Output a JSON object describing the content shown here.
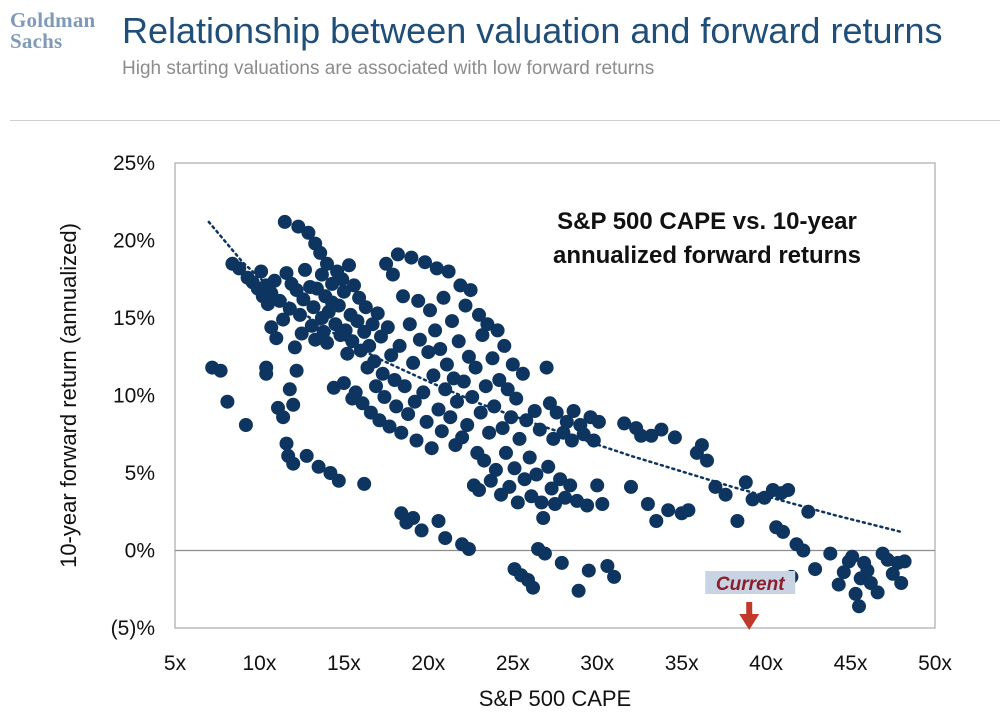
{
  "header": {
    "logo_line1": "Goldman",
    "logo_line2": "Sachs",
    "title": "Relationship between valuation and forward returns",
    "subtitle": "High starting valuations are associated with low forward returns"
  },
  "colors": {
    "points": "#0d3560",
    "trendline": "#0d3560",
    "title": "#1f4e79",
    "current_arrow": "#c0392b",
    "current_label": "#8b1e2b",
    "current_label_bg": "#c8d4e4"
  },
  "chart_data": {
    "type": "scatter",
    "title": "S&P 500 CAPE vs. 10-year annualized forward returns",
    "xlabel": "S&P 500 CAPE",
    "ylabel": "10-year forward return (annualized)",
    "xlim": [
      5,
      50
    ],
    "ylim": [
      -5,
      25
    ],
    "x_ticks": [
      5,
      10,
      15,
      20,
      25,
      30,
      35,
      40,
      45,
      50
    ],
    "x_tick_labels": [
      "5x",
      "10x",
      "15x",
      "20x",
      "25x",
      "30x",
      "35x",
      "40x",
      "45x",
      "50x"
    ],
    "y_ticks": [
      -5,
      0,
      5,
      10,
      15,
      20,
      25
    ],
    "y_tick_labels": [
      "(5)%",
      "0%",
      "5%",
      "10%",
      "15%",
      "20%",
      "25%"
    ],
    "grid": false,
    "zero_line": true,
    "trendline": {
      "style": "dotted",
      "x": [
        7,
        9,
        11,
        13,
        15,
        17,
        20,
        23,
        26,
        29,
        32,
        35,
        38,
        41,
        44,
        48
      ],
      "y": [
        21.2,
        18.6,
        16.6,
        15.0,
        13.6,
        12.4,
        10.9,
        9.5,
        8.3,
        7.2,
        6.1,
        5.1,
        4.1,
        3.2,
        2.3,
        1.2
      ]
    },
    "annotation": {
      "label": "Current",
      "x": 39
    },
    "series": [
      {
        "points": [
          [
            7.2,
            11.8
          ],
          [
            7.7,
            11.6
          ],
          [
            8.1,
            9.6
          ],
          [
            8.4,
            18.5
          ],
          [
            8.8,
            18.2
          ],
          [
            9.2,
            8.1
          ],
          [
            9.3,
            17.6
          ],
          [
            9.6,
            17.3
          ],
          [
            9.9,
            16.9
          ],
          [
            10.1,
            18.0
          ],
          [
            10.2,
            16.4
          ],
          [
            10.4,
            17.1
          ],
          [
            10.4,
            11.8
          ],
          [
            10.5,
            15.9
          ],
          [
            10.7,
            16.6
          ],
          [
            10.7,
            14.4
          ],
          [
            10.4,
            11.4
          ],
          [
            10.9,
            17.4
          ],
          [
            11.0,
            13.7
          ],
          [
            11.1,
            9.2
          ],
          [
            11.2,
            16.1
          ],
          [
            11.4,
            14.9
          ],
          [
            11.4,
            8.6
          ],
          [
            11.5,
            21.2
          ],
          [
            11.6,
            6.9
          ],
          [
            11.6,
            17.9
          ],
          [
            11.7,
            6.1
          ],
          [
            11.8,
            10.4
          ],
          [
            11.8,
            15.6
          ],
          [
            11.9,
            17.2
          ],
          [
            12.0,
            5.6
          ],
          [
            12.0,
            9.4
          ],
          [
            12.1,
            13.1
          ],
          [
            12.2,
            16.8
          ],
          [
            12.2,
            11.6
          ],
          [
            12.3,
            20.9
          ],
          [
            12.4,
            15.2
          ],
          [
            12.5,
            14.0
          ],
          [
            12.6,
            16.2
          ],
          [
            12.7,
            18.1
          ],
          [
            12.8,
            6.1
          ],
          [
            12.9,
            20.5
          ],
          [
            13.0,
            17.0
          ],
          [
            13.1,
            14.5
          ],
          [
            13.2,
            15.7
          ],
          [
            13.3,
            19.8
          ],
          [
            13.3,
            13.6
          ],
          [
            13.4,
            16.9
          ],
          [
            13.5,
            5.4
          ],
          [
            13.6,
            19.2
          ],
          [
            13.7,
            15.0
          ],
          [
            13.7,
            17.8
          ],
          [
            13.8,
            14.1
          ],
          [
            13.9,
            16.4
          ],
          [
            14.0,
            18.5
          ],
          [
            14.0,
            13.4
          ],
          [
            14.1,
            15.4
          ],
          [
            14.2,
            5.0
          ],
          [
            14.3,
            17.2
          ],
          [
            14.3,
            16.0
          ],
          [
            14.4,
            10.5
          ],
          [
            14.5,
            14.6
          ],
          [
            14.6,
            18.0
          ],
          [
            14.7,
            4.5
          ],
          [
            14.7,
            15.8
          ],
          [
            14.8,
            13.9
          ],
          [
            14.9,
            17.5
          ],
          [
            15.0,
            10.8
          ],
          [
            15.0,
            16.7
          ],
          [
            15.1,
            14.2
          ],
          [
            15.2,
            12.7
          ],
          [
            15.3,
            18.4
          ],
          [
            15.4,
            15.2
          ],
          [
            15.5,
            13.5
          ],
          [
            15.5,
            9.8
          ],
          [
            15.6,
            17.1
          ],
          [
            15.7,
            10.2
          ],
          [
            15.8,
            14.8
          ],
          [
            15.9,
            16.3
          ],
          [
            16.0,
            12.9
          ],
          [
            16.1,
            9.5
          ],
          [
            16.2,
            4.3
          ],
          [
            16.2,
            14.1
          ],
          [
            16.3,
            15.7
          ],
          [
            16.4,
            11.8
          ],
          [
            16.5,
            13.2
          ],
          [
            16.6,
            8.9
          ],
          [
            16.7,
            14.6
          ],
          [
            16.8,
            12.2
          ],
          [
            16.9,
            10.6
          ],
          [
            17.0,
            15.3
          ],
          [
            17.1,
            8.4
          ],
          [
            17.2,
            13.8
          ],
          [
            17.3,
            11.4
          ],
          [
            17.4,
            9.9
          ],
          [
            17.5,
            18.5
          ],
          [
            17.6,
            14.4
          ],
          [
            17.7,
            8.0
          ],
          [
            17.8,
            12.6
          ],
          [
            17.9,
            17.8
          ],
          [
            18.0,
            11.0
          ],
          [
            18.1,
            9.3
          ],
          [
            18.2,
            19.1
          ],
          [
            18.3,
            13.2
          ],
          [
            18.4,
            2.4
          ],
          [
            18.4,
            7.6
          ],
          [
            18.5,
            16.4
          ],
          [
            18.6,
            10.6
          ],
          [
            18.7,
            1.8
          ],
          [
            18.8,
            8.8
          ],
          [
            18.9,
            14.6
          ],
          [
            19.0,
            18.9
          ],
          [
            19.1,
            12.1
          ],
          [
            19.1,
            2.1
          ],
          [
            19.2,
            9.6
          ],
          [
            19.3,
            7.1
          ],
          [
            19.4,
            16.1
          ],
          [
            19.5,
            13.6
          ],
          [
            19.6,
            1.3
          ],
          [
            19.7,
            10.2
          ],
          [
            19.8,
            18.6
          ],
          [
            19.9,
            8.3
          ],
          [
            20.0,
            12.8
          ],
          [
            20.1,
            15.5
          ],
          [
            20.2,
            6.6
          ],
          [
            20.3,
            11.3
          ],
          [
            20.4,
            14.2
          ],
          [
            20.5,
            18.2
          ],
          [
            20.6,
            9.1
          ],
          [
            20.6,
            1.9
          ],
          [
            20.7,
            13.0
          ],
          [
            20.8,
            7.7
          ],
          [
            20.9,
            16.3
          ],
          [
            21.0,
            0.8
          ],
          [
            21.0,
            10.4
          ],
          [
            21.1,
            12.0
          ],
          [
            21.2,
            18.0
          ],
          [
            21.3,
            8.6
          ],
          [
            21.4,
            14.8
          ],
          [
            21.5,
            11.1
          ],
          [
            21.6,
            6.8
          ],
          [
            21.7,
            9.6
          ],
          [
            21.8,
            13.5
          ],
          [
            21.9,
            17.1
          ],
          [
            22.0,
            7.3
          ],
          [
            22.0,
            0.4
          ],
          [
            22.1,
            10.9
          ],
          [
            22.2,
            15.8
          ],
          [
            22.3,
            8.1
          ],
          [
            22.4,
            12.5
          ],
          [
            22.4,
            0.1
          ],
          [
            22.5,
            16.8
          ],
          [
            22.6,
            9.9
          ],
          [
            22.7,
            4.2
          ],
          [
            22.8,
            11.8
          ],
          [
            22.9,
            6.3
          ],
          [
            23.0,
            15.2
          ],
          [
            23.0,
            3.9
          ],
          [
            23.1,
            8.9
          ],
          [
            23.2,
            13.9
          ],
          [
            23.3,
            5.8
          ],
          [
            23.4,
            10.6
          ],
          [
            23.5,
            14.6
          ],
          [
            23.6,
            7.6
          ],
          [
            23.7,
            4.5
          ],
          [
            23.8,
            12.4
          ],
          [
            23.9,
            9.3
          ],
          [
            24.0,
            5.2
          ],
          [
            24.1,
            14.2
          ],
          [
            24.2,
            11.0
          ],
          [
            24.3,
            3.6
          ],
          [
            24.4,
            7.9
          ],
          [
            24.5,
            13.2
          ],
          [
            24.6,
            6.3
          ],
          [
            24.7,
            10.4
          ],
          [
            24.8,
            4.1
          ],
          [
            24.9,
            8.6
          ],
          [
            25.0,
            12.0
          ],
          [
            25.1,
            5.3
          ],
          [
            25.1,
            -1.2
          ],
          [
            25.2,
            9.8
          ],
          [
            25.3,
            3.1
          ],
          [
            25.4,
            7.2
          ],
          [
            25.5,
            -1.6
          ],
          [
            25.6,
            11.4
          ],
          [
            25.7,
            4.6
          ],
          [
            25.8,
            8.4
          ],
          [
            25.9,
            -1.9
          ],
          [
            26.0,
            6.0
          ],
          [
            26.1,
            3.5
          ],
          [
            26.2,
            -2.4
          ],
          [
            26.3,
            9.0
          ],
          [
            26.4,
            4.9
          ],
          [
            26.5,
            0.1
          ],
          [
            26.6,
            7.8
          ],
          [
            26.7,
            3.1
          ],
          [
            26.8,
            2.1
          ],
          [
            26.9,
            -0.2
          ],
          [
            27.0,
            11.8
          ],
          [
            27.1,
            5.4
          ],
          [
            27.2,
            9.5
          ],
          [
            27.3,
            4.0
          ],
          [
            27.4,
            7.2
          ],
          [
            27.5,
            3.0
          ],
          [
            27.6,
            8.9
          ],
          [
            27.8,
            4.6
          ],
          [
            27.9,
            -0.8
          ],
          [
            28.0,
            7.6
          ],
          [
            28.1,
            3.4
          ],
          [
            28.2,
            8.3
          ],
          [
            28.4,
            4.2
          ],
          [
            28.5,
            7.1
          ],
          [
            28.6,
            9.0
          ],
          [
            28.8,
            3.2
          ],
          [
            28.9,
            -2.6
          ],
          [
            29.0,
            8.1
          ],
          [
            29.2,
            7.5
          ],
          [
            29.4,
            2.9
          ],
          [
            29.5,
            -1.3
          ],
          [
            29.6,
            8.6
          ],
          [
            29.8,
            7.1
          ],
          [
            30.0,
            4.2
          ],
          [
            30.1,
            8.3
          ],
          [
            30.3,
            3.0
          ],
          [
            30.6,
            -1.0
          ],
          [
            31.0,
            -1.7
          ],
          [
            31.6,
            8.2
          ],
          [
            32.0,
            4.1
          ],
          [
            32.3,
            7.9
          ],
          [
            32.6,
            7.4
          ],
          [
            33.0,
            3.0
          ],
          [
            33.2,
            7.4
          ],
          [
            33.5,
            1.9
          ],
          [
            33.8,
            7.8
          ],
          [
            34.2,
            2.6
          ],
          [
            34.6,
            7.3
          ],
          [
            35.0,
            2.4
          ],
          [
            35.4,
            2.6
          ],
          [
            35.9,
            6.3
          ],
          [
            36.2,
            6.8
          ],
          [
            36.5,
            5.8
          ],
          [
            37.0,
            4.1
          ],
          [
            37.6,
            3.6
          ],
          [
            38.3,
            1.9
          ],
          [
            38.8,
            4.4
          ],
          [
            39.2,
            3.3
          ],
          [
            39.9,
            3.4
          ],
          [
            40.4,
            3.9
          ],
          [
            40.6,
            1.5
          ],
          [
            40.9,
            3.7
          ],
          [
            41.0,
            1.2
          ],
          [
            41.3,
            3.9
          ],
          [
            41.5,
            -1.7
          ],
          [
            41.8,
            0.4
          ],
          [
            42.2,
            0.0
          ],
          [
            42.5,
            2.5
          ],
          [
            42.9,
            -1.2
          ],
          [
            43.8,
            -0.2
          ],
          [
            44.3,
            -2.2
          ],
          [
            44.6,
            -1.4
          ],
          [
            44.9,
            -0.7
          ],
          [
            45.1,
            -0.4
          ],
          [
            45.3,
            -2.8
          ],
          [
            45.5,
            -3.6
          ],
          [
            45.6,
            -1.8
          ],
          [
            45.8,
            -0.8
          ],
          [
            46.0,
            -1.3
          ],
          [
            46.2,
            -2.1
          ],
          [
            46.6,
            -2.7
          ],
          [
            46.9,
            -0.2
          ],
          [
            47.2,
            -0.6
          ],
          [
            47.5,
            -1.5
          ],
          [
            47.8,
            -0.8
          ],
          [
            48.0,
            -2.1
          ],
          [
            48.2,
            -0.7
          ]
        ]
      }
    ]
  }
}
